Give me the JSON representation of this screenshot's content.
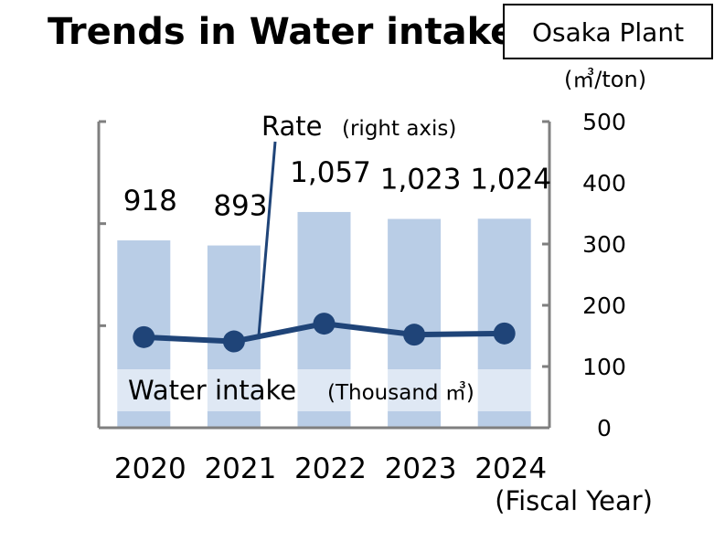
{
  "chart_data": {
    "type": "bar",
    "title": "Trends in Water intake",
    "plant_label": "Osaka Plant",
    "categories": [
      "2020",
      "2021",
      "2022",
      "2023",
      "2024"
    ],
    "xlabel": "(Fiscal Year)",
    "series": [
      {
        "name": "Water intake",
        "type": "bar",
        "unit": "(Thousand ㎥)",
        "axis": "left",
        "values": [
          918,
          893,
          1057,
          1023,
          1024
        ],
        "value_labels": [
          "918",
          "893",
          "1,057",
          "1,023",
          "1,024"
        ]
      },
      {
        "name": "Rate",
        "type": "line",
        "unit": "(right axis)",
        "axis": "right",
        "values": [
          148,
          141,
          170,
          152,
          154
        ]
      }
    ],
    "y_left_lim": [
      0,
      1500
    ],
    "y_right": {
      "unit": "(㎥/ton)",
      "lim": [
        0,
        500
      ],
      "ticks": [
        "0",
        "100",
        "200",
        "300",
        "400",
        "500"
      ]
    },
    "colors": {
      "bar": "#b9cde6",
      "line": "#1f4478",
      "axis": "#7f7f7f",
      "band": "#ffffff"
    },
    "grid": false
  }
}
